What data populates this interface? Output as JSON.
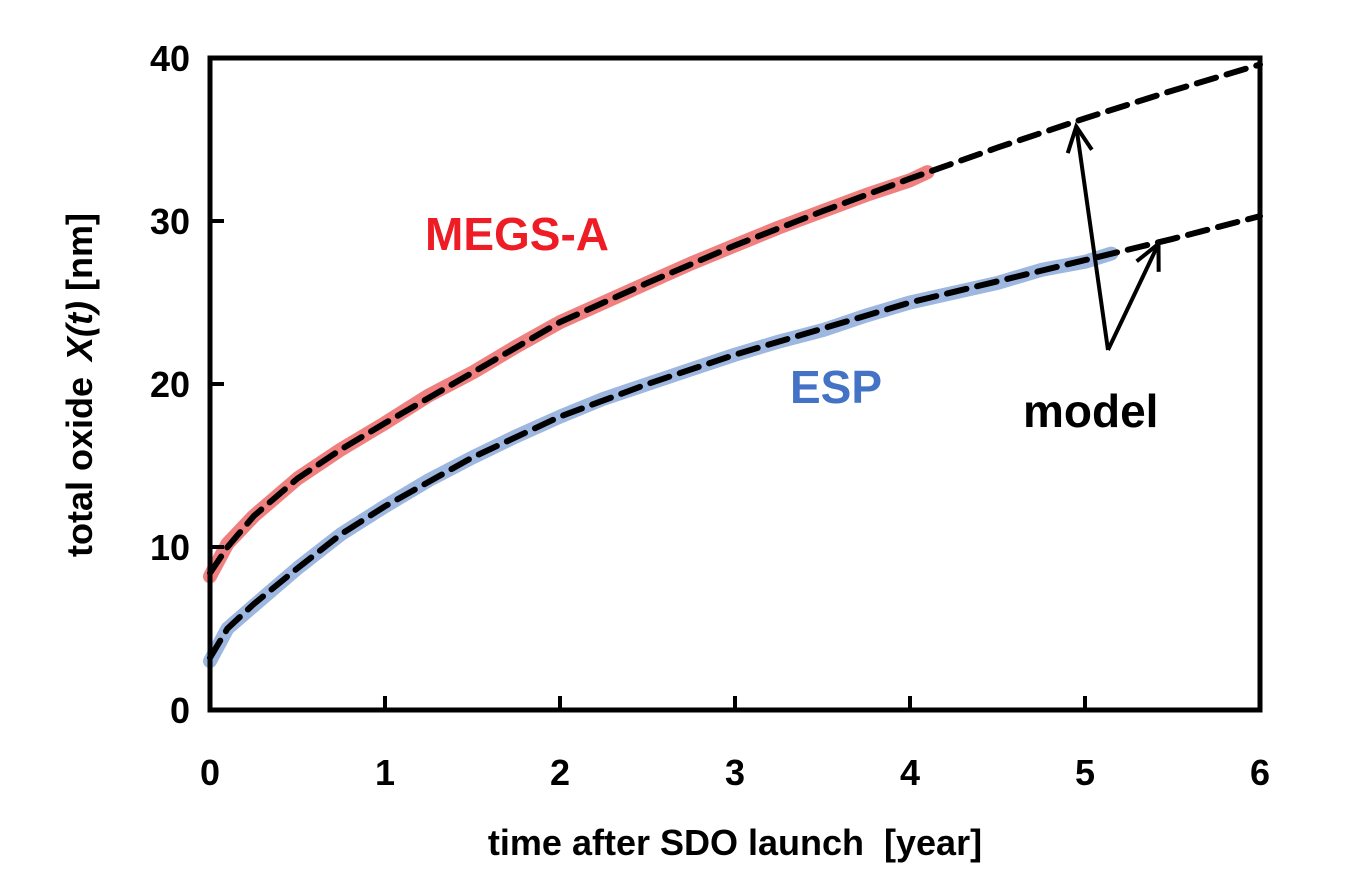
{
  "chart_data": {
    "type": "line",
    "title": "",
    "xlabel": "time after SDO launch  [year]",
    "ylabel": {
      "prefix": "total oxide",
      "var": "X(t)",
      "unit": "[nm]"
    },
    "xlim": [
      0,
      6
    ],
    "ylim": [
      0,
      40
    ],
    "xticks": [
      "0",
      "1",
      "2",
      "3",
      "4",
      "5",
      "6"
    ],
    "yticks": [
      "0",
      "10",
      "20",
      "30",
      "40"
    ],
    "grid": false,
    "series": [
      {
        "name": "MEGS-A",
        "kind": "data",
        "color": "#f08080",
        "label_color": "#ee1c24",
        "x": [
          0,
          0.1,
          0.25,
          0.5,
          0.75,
          1,
          1.25,
          1.5,
          1.75,
          2,
          2.25,
          2.5,
          2.75,
          3,
          3.25,
          3.5,
          3.75,
          4,
          4.1
        ],
        "y": [
          8.2,
          10.2,
          11.9,
          14.2,
          16.0,
          17.6,
          19.3,
          20.7,
          22.3,
          23.8,
          25.0,
          26.2,
          27.4,
          28.5,
          29.6,
          30.6,
          31.6,
          32.5,
          33.0
        ]
      },
      {
        "name": "ESP",
        "kind": "data",
        "color": "#9db7e0",
        "label_color": "#4472c4",
        "x": [
          0,
          0.1,
          0.25,
          0.5,
          0.75,
          1,
          1.25,
          1.5,
          1.75,
          2,
          2.25,
          2.5,
          2.75,
          3,
          3.25,
          3.5,
          3.75,
          4,
          4.25,
          4.5,
          4.75,
          5,
          5.15
        ],
        "y": [
          3.0,
          5.0,
          6.4,
          8.7,
          10.8,
          12.5,
          14.1,
          15.5,
          16.8,
          18.0,
          19.1,
          20.0,
          20.9,
          21.8,
          22.6,
          23.3,
          24.2,
          25.0,
          25.6,
          26.2,
          27.0,
          27.5,
          28.0
        ]
      },
      {
        "name": "model",
        "kind": "model",
        "color": "#000000",
        "x": [
          0,
          0.1,
          0.25,
          0.5,
          0.75,
          1,
          1.5,
          2,
          2.5,
          3,
          3.5,
          4,
          4.5,
          5,
          5.5,
          6
        ],
        "y": [
          8.4,
          10.0,
          11.9,
          14.2,
          16.0,
          17.6,
          20.7,
          23.8,
          26.2,
          28.5,
          30.6,
          32.6,
          34.5,
          36.3,
          38.0,
          39.6
        ]
      },
      {
        "name": "model",
        "kind": "model",
        "color": "#000000",
        "x": [
          0,
          0.1,
          0.25,
          0.5,
          0.75,
          1,
          1.5,
          2,
          2.5,
          3,
          3.5,
          4,
          4.5,
          5,
          5.5,
          6
        ],
        "y": [
          3.2,
          5.0,
          6.5,
          8.7,
          10.8,
          12.5,
          15.5,
          18.0,
          20.0,
          21.8,
          23.4,
          25.0,
          26.3,
          27.6,
          28.9,
          30.3
        ]
      }
    ],
    "annotations": {
      "megs": "MEGS-A",
      "esp": "ESP",
      "model": "model"
    }
  }
}
